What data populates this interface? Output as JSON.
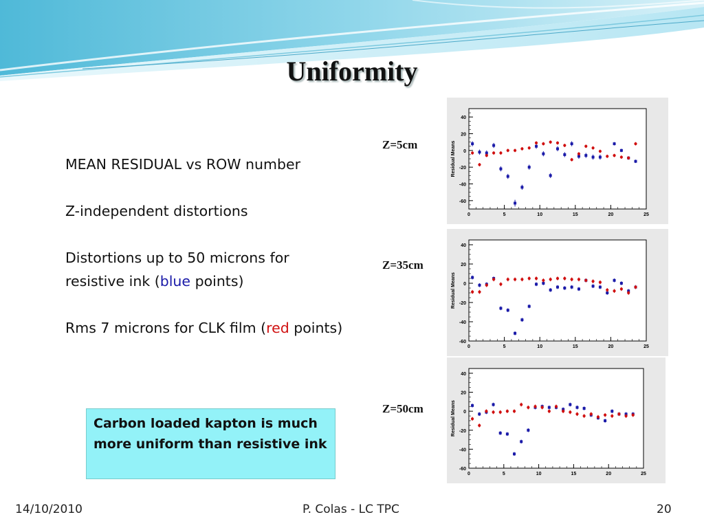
{
  "slide": {
    "title": "Uniformity",
    "bullets": {
      "b1": "MEAN RESIDUAL vs ROW number",
      "b2": "Z-independent distortions",
      "b3_pre": "Distortions up to 50 microns for resistive ink (",
      "b3_color": "blue",
      "b3_post": " points)",
      "b4_pre": "Rms 7 microns for CLK film (",
      "b4_color": "red",
      "b4_post": " points)"
    },
    "callout": "Carbon loaded kapton is much more uniform than resistive ink",
    "footer": {
      "date": "14/10/2010",
      "author": "P. Colas - LC TPC",
      "page": "20"
    }
  },
  "colors": {
    "blue_series": "#1a1aa8",
    "red_series": "#d01010",
    "callout_bg": "#93f2f8"
  },
  "chart_data": [
    {
      "type": "scatter",
      "label": "Z=5cm",
      "ylabel": "Residual Means",
      "xlim": [
        0,
        25
      ],
      "ylim": [
        -70,
        50
      ],
      "xticks": [
        "0",
        "5",
        "10",
        "15",
        "20",
        "25"
      ],
      "yticks": [
        "40",
        "20",
        "0",
        "-20",
        "-40",
        "-60"
      ],
      "ytick_values": [
        40,
        20,
        0,
        -20,
        -40,
        -60
      ],
      "series": [
        {
          "color": "blue",
          "x": [
            0,
            1,
            2,
            3,
            4,
            5,
            6,
            7,
            8,
            9,
            10,
            11,
            12,
            13,
            14,
            15,
            16,
            17,
            18,
            19,
            20,
            21,
            22,
            23
          ],
          "y": [
            8,
            -2,
            -3,
            6,
            -22,
            -31,
            -63,
            -44,
            -20,
            5,
            -4,
            -30,
            2,
            -5,
            8,
            -7,
            -6,
            -8,
            -8,
            null,
            8,
            0,
            -9,
            -13
          ],
          "err": [
            3,
            3,
            3,
            3,
            3,
            3,
            4,
            3,
            3,
            3,
            3,
            3,
            3,
            3,
            3,
            3,
            3,
            3,
            3,
            null,
            2,
            2,
            2,
            2
          ]
        },
        {
          "color": "red",
          "x": [
            0,
            1,
            2,
            3,
            4,
            5,
            6,
            7,
            8,
            9,
            10,
            11,
            12,
            13,
            14,
            15,
            16,
            17,
            18,
            19,
            20,
            21,
            22,
            23
          ],
          "y": [
            -3,
            -17,
            -6,
            -3,
            -3,
            0,
            0,
            2,
            3,
            9,
            8,
            10,
            9,
            6,
            -11,
            -4,
            5,
            3,
            -1,
            -7,
            -6,
            -8,
            -9,
            8
          ],
          "err": [
            2,
            2,
            2,
            2,
            2,
            2,
            2,
            2,
            2,
            2,
            2,
            2,
            2,
            2,
            2,
            2,
            2,
            2,
            2,
            2,
            2,
            2,
            2,
            2
          ]
        }
      ]
    },
    {
      "type": "scatter",
      "label": "Z=35cm",
      "ylabel": "Residual Means",
      "xlim": [
        0,
        25
      ],
      "ylim": [
        -60,
        45
      ],
      "xticks": [
        "0",
        "5",
        "10",
        "15",
        "20",
        "25"
      ],
      "yticks": [
        "40",
        "20",
        "0",
        "-20",
        "-40",
        "-60"
      ],
      "ytick_values": [
        40,
        20,
        0,
        -20,
        -40,
        -60
      ],
      "series": [
        {
          "color": "blue",
          "x": [
            0,
            1,
            2,
            3,
            4,
            5,
            6,
            7,
            8,
            9,
            10,
            11,
            12,
            13,
            14,
            15,
            16,
            17,
            18,
            19,
            20,
            21,
            22,
            23
          ],
          "y": [
            6,
            -2,
            -1,
            5,
            -26,
            -28,
            -52,
            -38,
            -24,
            -1,
            0,
            -7,
            -4,
            -5,
            -4,
            -6,
            3,
            -3,
            -4,
            -10,
            3,
            0,
            -8,
            -4
          ],
          "err": [
            2,
            2,
            2,
            2,
            2,
            2,
            2,
            2,
            2,
            2,
            2,
            2,
            2,
            2,
            2,
            2,
            2,
            2,
            2,
            2,
            2,
            2,
            2,
            2
          ]
        },
        {
          "color": "red",
          "x": [
            0,
            1,
            2,
            3,
            4,
            5,
            6,
            7,
            8,
            9,
            10,
            11,
            12,
            13,
            14,
            15,
            16,
            17,
            18,
            19,
            20,
            21,
            22,
            23
          ],
          "y": [
            -9,
            -9,
            -2,
            4,
            -1,
            4,
            4,
            4,
            5,
            5,
            3,
            4,
            5,
            5,
            4,
            4,
            3,
            2,
            1,
            -7,
            -8,
            -6,
            -10,
            -4
          ],
          "err": [
            2,
            2,
            2,
            2,
            2,
            2,
            2,
            2,
            2,
            2,
            2,
            2,
            2,
            2,
            2,
            2,
            2,
            2,
            2,
            2,
            2,
            2,
            2,
            2
          ]
        }
      ]
    },
    {
      "type": "scatter",
      "label": "Z=50cm",
      "ylabel": "Residual Means",
      "xlim": [
        0,
        25
      ],
      "ylim": [
        -60,
        45
      ],
      "xticks": [
        "0",
        "5",
        "10",
        "15",
        "20",
        "25"
      ],
      "yticks": [
        "40",
        "20",
        "0",
        "-20",
        "-40",
        "-60"
      ],
      "ytick_values": [
        40,
        20,
        0,
        -20,
        -40,
        -60
      ],
      "series": [
        {
          "color": "blue",
          "x": [
            0,
            1,
            2,
            3,
            4,
            5,
            6,
            7,
            8,
            9,
            10,
            11,
            12,
            13,
            14,
            15,
            16,
            17,
            18,
            19,
            20,
            21,
            22,
            23
          ],
          "y": [
            6,
            -3,
            -1,
            7,
            -23,
            -24,
            -45,
            -32,
            -20,
            4,
            5,
            4,
            4,
            2,
            7,
            4,
            3,
            -4,
            -7,
            -10,
            0,
            -3,
            -3,
            -3
          ],
          "err": [
            2,
            2,
            2,
            2,
            2,
            2,
            2,
            2,
            2,
            2,
            2,
            2,
            2,
            2,
            2,
            2,
            2,
            2,
            2,
            2,
            2,
            2,
            2,
            2
          ]
        },
        {
          "color": "red",
          "x": [
            0,
            1,
            2,
            3,
            4,
            5,
            6,
            7,
            8,
            9,
            10,
            11,
            12,
            13,
            14,
            15,
            16,
            17,
            18,
            19,
            20,
            21,
            22,
            23
          ],
          "y": [
            -8,
            -15,
            0,
            -1,
            -1,
            0,
            0,
            7,
            4,
            5,
            4,
            0,
            5,
            0,
            -1,
            -3,
            -5,
            -3,
            -6,
            -4,
            -5,
            -3,
            -5,
            -4
          ],
          "err": [
            2,
            2,
            2,
            2,
            2,
            2,
            2,
            2,
            2,
            2,
            2,
            2,
            2,
            2,
            2,
            2,
            2,
            2,
            2,
            2,
            2,
            2,
            2,
            2
          ]
        }
      ]
    }
  ]
}
